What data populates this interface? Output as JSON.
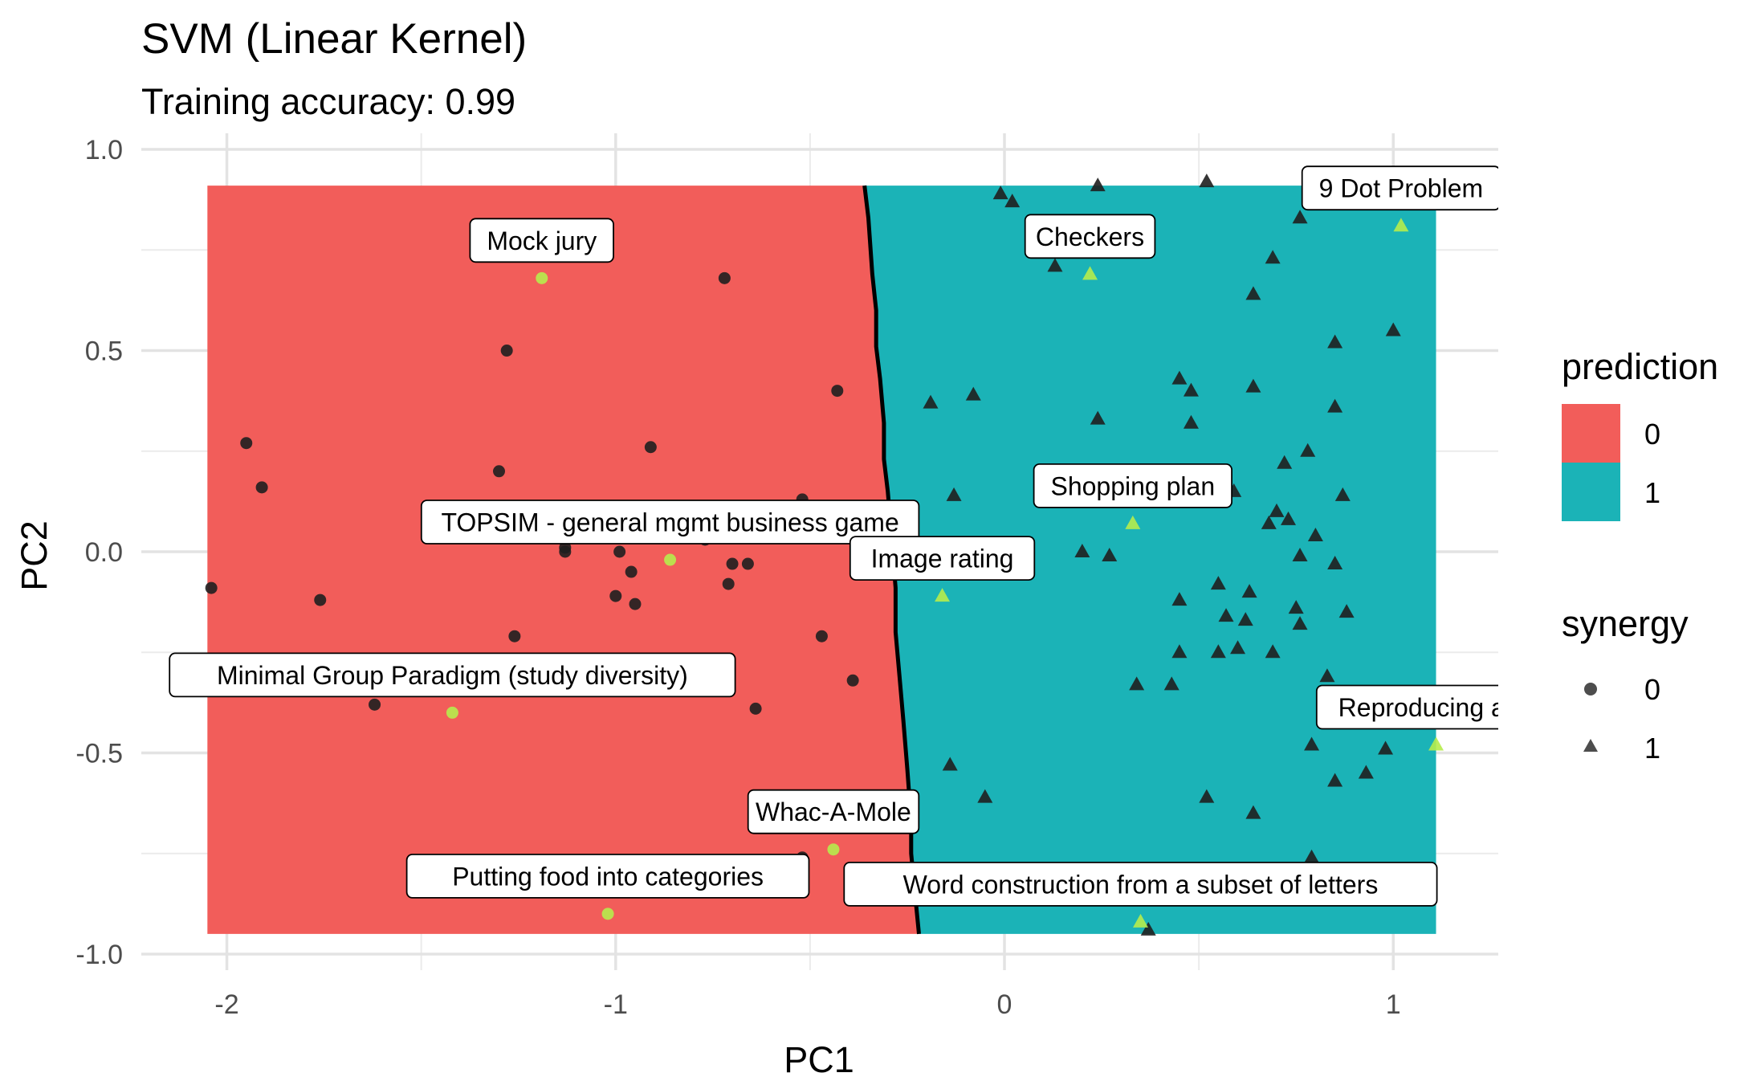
{
  "chart_data": {
    "type": "scatter",
    "title": "SVM (Linear Kernel)",
    "subtitle": "Training accuracy: 0.99",
    "xlabel": "PC1",
    "ylabel": "PC2",
    "xlim": [
      -2.22,
      1.27
    ],
    "ylim": [
      -1.04,
      1.04
    ],
    "xticks": [
      -2,
      -1,
      0,
      1
    ],
    "xtick_labels": [
      "-2",
      "-1",
      "0",
      "1"
    ],
    "yticks": [
      1.0,
      0.5,
      0.0,
      -0.5,
      -1.0
    ],
    "ytick_labels": [
      "1.0",
      "0.5",
      "0.0",
      "-0.5",
      "-1.0"
    ],
    "grid": true,
    "region_extent": {
      "x": [
        -2.05,
        1.11
      ],
      "y": [
        -0.95,
        0.91
      ]
    },
    "decision_boundary": [
      [
        -0.36,
        0.91
      ],
      [
        -0.35,
        0.83
      ],
      [
        -0.34,
        0.69
      ],
      [
        -0.33,
        0.6
      ],
      [
        -0.33,
        0.51
      ],
      [
        -0.32,
        0.43
      ],
      [
        -0.31,
        0.32
      ],
      [
        -0.31,
        0.23
      ],
      [
        -0.3,
        0.15
      ],
      [
        -0.29,
        0.03
      ],
      [
        -0.28,
        -0.09
      ],
      [
        -0.28,
        -0.2
      ],
      [
        -0.27,
        -0.31
      ],
      [
        -0.26,
        -0.42
      ],
      [
        -0.25,
        -0.54
      ],
      [
        -0.24,
        -0.67
      ],
      [
        -0.24,
        -0.75
      ],
      [
        -0.23,
        -0.85
      ],
      [
        -0.22,
        -0.95
      ]
    ],
    "prediction_colors": {
      "0": "#f25d5a",
      "1": "#1bb3b7"
    },
    "legend_prediction": {
      "title": "prediction",
      "labels": [
        "0",
        "1"
      ]
    },
    "legend_synergy": {
      "title": "synergy",
      "labels": [
        "0",
        "1"
      ]
    },
    "point_color": "#1f1f1f",
    "highlight_color": "#b6ec4c",
    "series": [
      {
        "synergy": 0,
        "points": [
          [
            -2.04,
            -0.09
          ],
          [
            -1.95,
            0.27
          ],
          [
            -1.91,
            0.16
          ],
          [
            -1.76,
            -0.12
          ],
          [
            -1.62,
            -0.38
          ],
          [
            -1.3,
            0.2
          ],
          [
            -1.28,
            0.5
          ],
          [
            -1.26,
            -0.21
          ],
          [
            -1.13,
            0.01
          ],
          [
            -1.13,
            0.0
          ],
          [
            -1.0,
            -0.11
          ],
          [
            -0.99,
            0.0
          ],
          [
            -0.96,
            -0.05
          ],
          [
            -0.95,
            -0.13
          ],
          [
            -0.91,
            0.26
          ],
          [
            -0.77,
            0.03
          ],
          [
            -0.72,
            0.68
          ],
          [
            -0.71,
            -0.08
          ],
          [
            -0.7,
            -0.03
          ],
          [
            -0.66,
            -0.03
          ],
          [
            -0.64,
            -0.39
          ],
          [
            -0.52,
            0.13
          ],
          [
            -0.52,
            0.05
          ],
          [
            -0.52,
            -0.76
          ],
          [
            -0.47,
            -0.21
          ],
          [
            -0.43,
            0.4
          ],
          [
            -0.39,
            -0.32
          ],
          [
            -0.27,
            0.04
          ]
        ]
      },
      {
        "synergy": 1,
        "points": [
          [
            -0.19,
            0.37
          ],
          [
            -0.14,
            -0.53
          ],
          [
            -0.13,
            0.14
          ],
          [
            -0.08,
            0.39
          ],
          [
            -0.05,
            -0.61
          ],
          [
            -0.01,
            0.89
          ],
          [
            0.02,
            0.87
          ],
          [
            0.13,
            0.71
          ],
          [
            0.2,
            0.0
          ],
          [
            0.24,
            0.91
          ],
          [
            0.24,
            0.33
          ],
          [
            0.27,
            -0.01
          ],
          [
            0.34,
            -0.33
          ],
          [
            0.37,
            -0.94
          ],
          [
            0.43,
            -0.33
          ],
          [
            0.45,
            -0.12
          ],
          [
            0.45,
            -0.25
          ],
          [
            0.45,
            0.43
          ],
          [
            0.48,
            0.4
          ],
          [
            0.48,
            0.32
          ],
          [
            0.52,
            0.92
          ],
          [
            0.52,
            -0.61
          ],
          [
            0.55,
            -0.08
          ],
          [
            0.55,
            -0.25
          ],
          [
            0.57,
            -0.16
          ],
          [
            0.59,
            0.15
          ],
          [
            0.6,
            -0.24
          ],
          [
            0.62,
            -0.17
          ],
          [
            0.63,
            -0.1
          ],
          [
            0.64,
            0.64
          ],
          [
            0.64,
            0.41
          ],
          [
            0.64,
            -0.65
          ],
          [
            0.68,
            0.07
          ],
          [
            0.69,
            -0.25
          ],
          [
            0.69,
            0.73
          ],
          [
            0.7,
            0.1
          ],
          [
            0.72,
            0.22
          ],
          [
            0.73,
            0.08
          ],
          [
            0.75,
            -0.14
          ],
          [
            0.76,
            -0.01
          ],
          [
            0.76,
            -0.18
          ],
          [
            0.76,
            0.83
          ],
          [
            0.78,
            0.25
          ],
          [
            0.79,
            -0.48
          ],
          [
            0.79,
            -0.76
          ],
          [
            0.8,
            0.04
          ],
          [
            0.83,
            -0.31
          ],
          [
            0.85,
            0.52
          ],
          [
            0.85,
            0.36
          ],
          [
            0.85,
            -0.57
          ],
          [
            0.85,
            -0.03
          ],
          [
            0.87,
            0.14
          ],
          [
            0.88,
            -0.15
          ],
          [
            0.93,
            -0.55
          ],
          [
            0.98,
            -0.49
          ],
          [
            1.0,
            0.55
          ]
        ]
      }
    ],
    "highlighted": [
      {
        "label": "Mock jury",
        "synergy": 0,
        "x": -1.19,
        "y": 0.68
      },
      {
        "label": "TOPSIM - general mgmt business game",
        "synergy": 0,
        "x": -0.86,
        "y": -0.02
      },
      {
        "label": "Minimal Group Paradigm (study diversity)",
        "synergy": 0,
        "x": -1.42,
        "y": -0.4
      },
      {
        "label": "Whac-A-Mole",
        "synergy": 0,
        "x": -0.44,
        "y": -0.74
      },
      {
        "label": "Putting food into categories",
        "synergy": 0,
        "x": -1.02,
        "y": -0.9
      },
      {
        "label": "Checkers",
        "synergy": 1,
        "x": 0.22,
        "y": 0.69
      },
      {
        "label": "9 Dot Problem",
        "synergy": 1,
        "x": 1.02,
        "y": 0.81
      },
      {
        "label": "Shopping plan",
        "synergy": 1,
        "x": 0.33,
        "y": 0.07
      },
      {
        "label": "Image rating",
        "synergy": 1,
        "x": -0.16,
        "y": -0.11
      },
      {
        "label": "Reproducing arts",
        "synergy": 1,
        "x": 1.11,
        "y": -0.48
      },
      {
        "label": "Word construction from a subset of letters",
        "synergy": 1,
        "x": 0.35,
        "y": -0.92
      }
    ]
  }
}
